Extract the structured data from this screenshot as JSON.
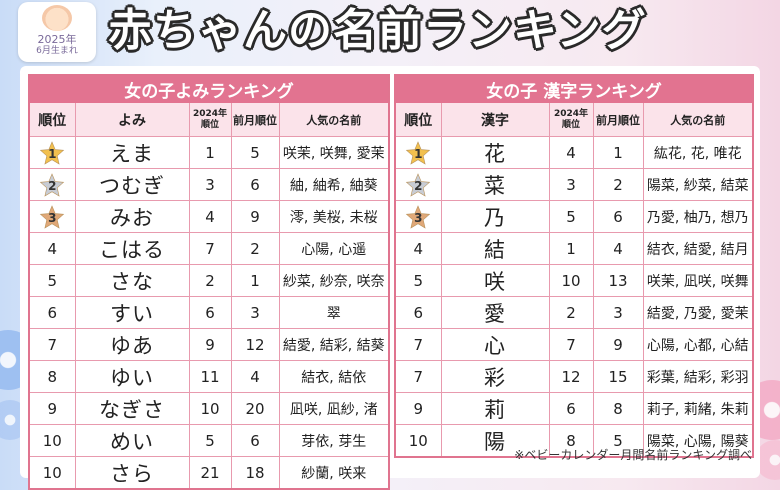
{
  "header": {
    "title": "赤ちゃんの名前ランキング",
    "badge_year": "2025年",
    "badge_sub": "6月生まれ"
  },
  "colors": {
    "accent": "#e27390",
    "header_bg": "#fbe3ea",
    "gold": "#f2c04e",
    "silver": "#c8ccd4",
    "bronze": "#e0a878"
  },
  "left_table": {
    "caption": "女の子よみランキング",
    "headers": [
      "順位",
      "よみ",
      "2024年順位",
      "前月順位",
      "人気の名前"
    ],
    "rows": [
      {
        "rank": "1",
        "medal": "gold",
        "name": "えま",
        "y2024": "1",
        "prev": "5",
        "names": "咲茉, 咲舞, 愛茉"
      },
      {
        "rank": "2",
        "medal": "silver",
        "name": "つむぎ",
        "y2024": "3",
        "prev": "6",
        "names": "紬, 紬希, 紬葵"
      },
      {
        "rank": "3",
        "medal": "bronze",
        "name": "みお",
        "y2024": "4",
        "prev": "9",
        "names": "澪, 美桜, 未桜"
      },
      {
        "rank": "4",
        "name": "こはる",
        "y2024": "7",
        "prev": "2",
        "names": "心陽, 心遥"
      },
      {
        "rank": "5",
        "name": "さな",
        "y2024": "2",
        "prev": "1",
        "names": "紗菜, 紗奈, 咲奈"
      },
      {
        "rank": "6",
        "name": "すい",
        "y2024": "6",
        "prev": "3",
        "names": "翠"
      },
      {
        "rank": "7",
        "name": "ゆあ",
        "y2024": "9",
        "prev": "12",
        "names": "結愛, 結彩, 結葵"
      },
      {
        "rank": "8",
        "name": "ゆい",
        "y2024": "11",
        "prev": "4",
        "names": "結衣, 結依"
      },
      {
        "rank": "9",
        "name": "なぎさ",
        "y2024": "10",
        "prev": "20",
        "names": "凪咲, 凪紗, 渚"
      },
      {
        "rank": "10",
        "name": "めい",
        "y2024": "5",
        "prev": "6",
        "names": "芽依, 芽生"
      },
      {
        "rank": "10",
        "name": "さら",
        "y2024": "21",
        "prev": "18",
        "names": "紗蘭, 咲来"
      }
    ]
  },
  "right_table": {
    "caption": "女の子 漢字ランキング",
    "headers": [
      "順位",
      "漢字",
      "2024年順位",
      "前月順位",
      "人気の名前"
    ],
    "rows": [
      {
        "rank": "1",
        "medal": "gold",
        "name": "花",
        "y2024": "4",
        "prev": "1",
        "names": "紘花, 花, 唯花"
      },
      {
        "rank": "2",
        "medal": "silver",
        "name": "菜",
        "y2024": "3",
        "prev": "2",
        "names": "陽菜, 紗菜, 結菜"
      },
      {
        "rank": "3",
        "medal": "bronze",
        "name": "乃",
        "y2024": "5",
        "prev": "6",
        "names": "乃愛, 柚乃, 想乃"
      },
      {
        "rank": "4",
        "name": "結",
        "y2024": "1",
        "prev": "4",
        "names": "結衣, 結愛, 結月"
      },
      {
        "rank": "5",
        "name": "咲",
        "y2024": "10",
        "prev": "13",
        "names": "咲茉, 凪咲, 咲舞"
      },
      {
        "rank": "6",
        "name": "愛",
        "y2024": "2",
        "prev": "3",
        "names": "結愛, 乃愛, 愛茉"
      },
      {
        "rank": "7",
        "name": "心",
        "y2024": "7",
        "prev": "9",
        "names": "心陽, 心都, 心結"
      },
      {
        "rank": "7",
        "name": "彩",
        "y2024": "12",
        "prev": "15",
        "names": "彩葉, 結彩, 彩羽"
      },
      {
        "rank": "9",
        "name": "莉",
        "y2024": "6",
        "prev": "8",
        "names": "莉子, 莉緒, 朱莉"
      },
      {
        "rank": "10",
        "name": "陽",
        "y2024": "8",
        "prev": "5",
        "names": "陽菜, 心陽, 陽葵"
      }
    ]
  },
  "footnote": "※ベビーカレンダー月間名前ランキング調べ"
}
